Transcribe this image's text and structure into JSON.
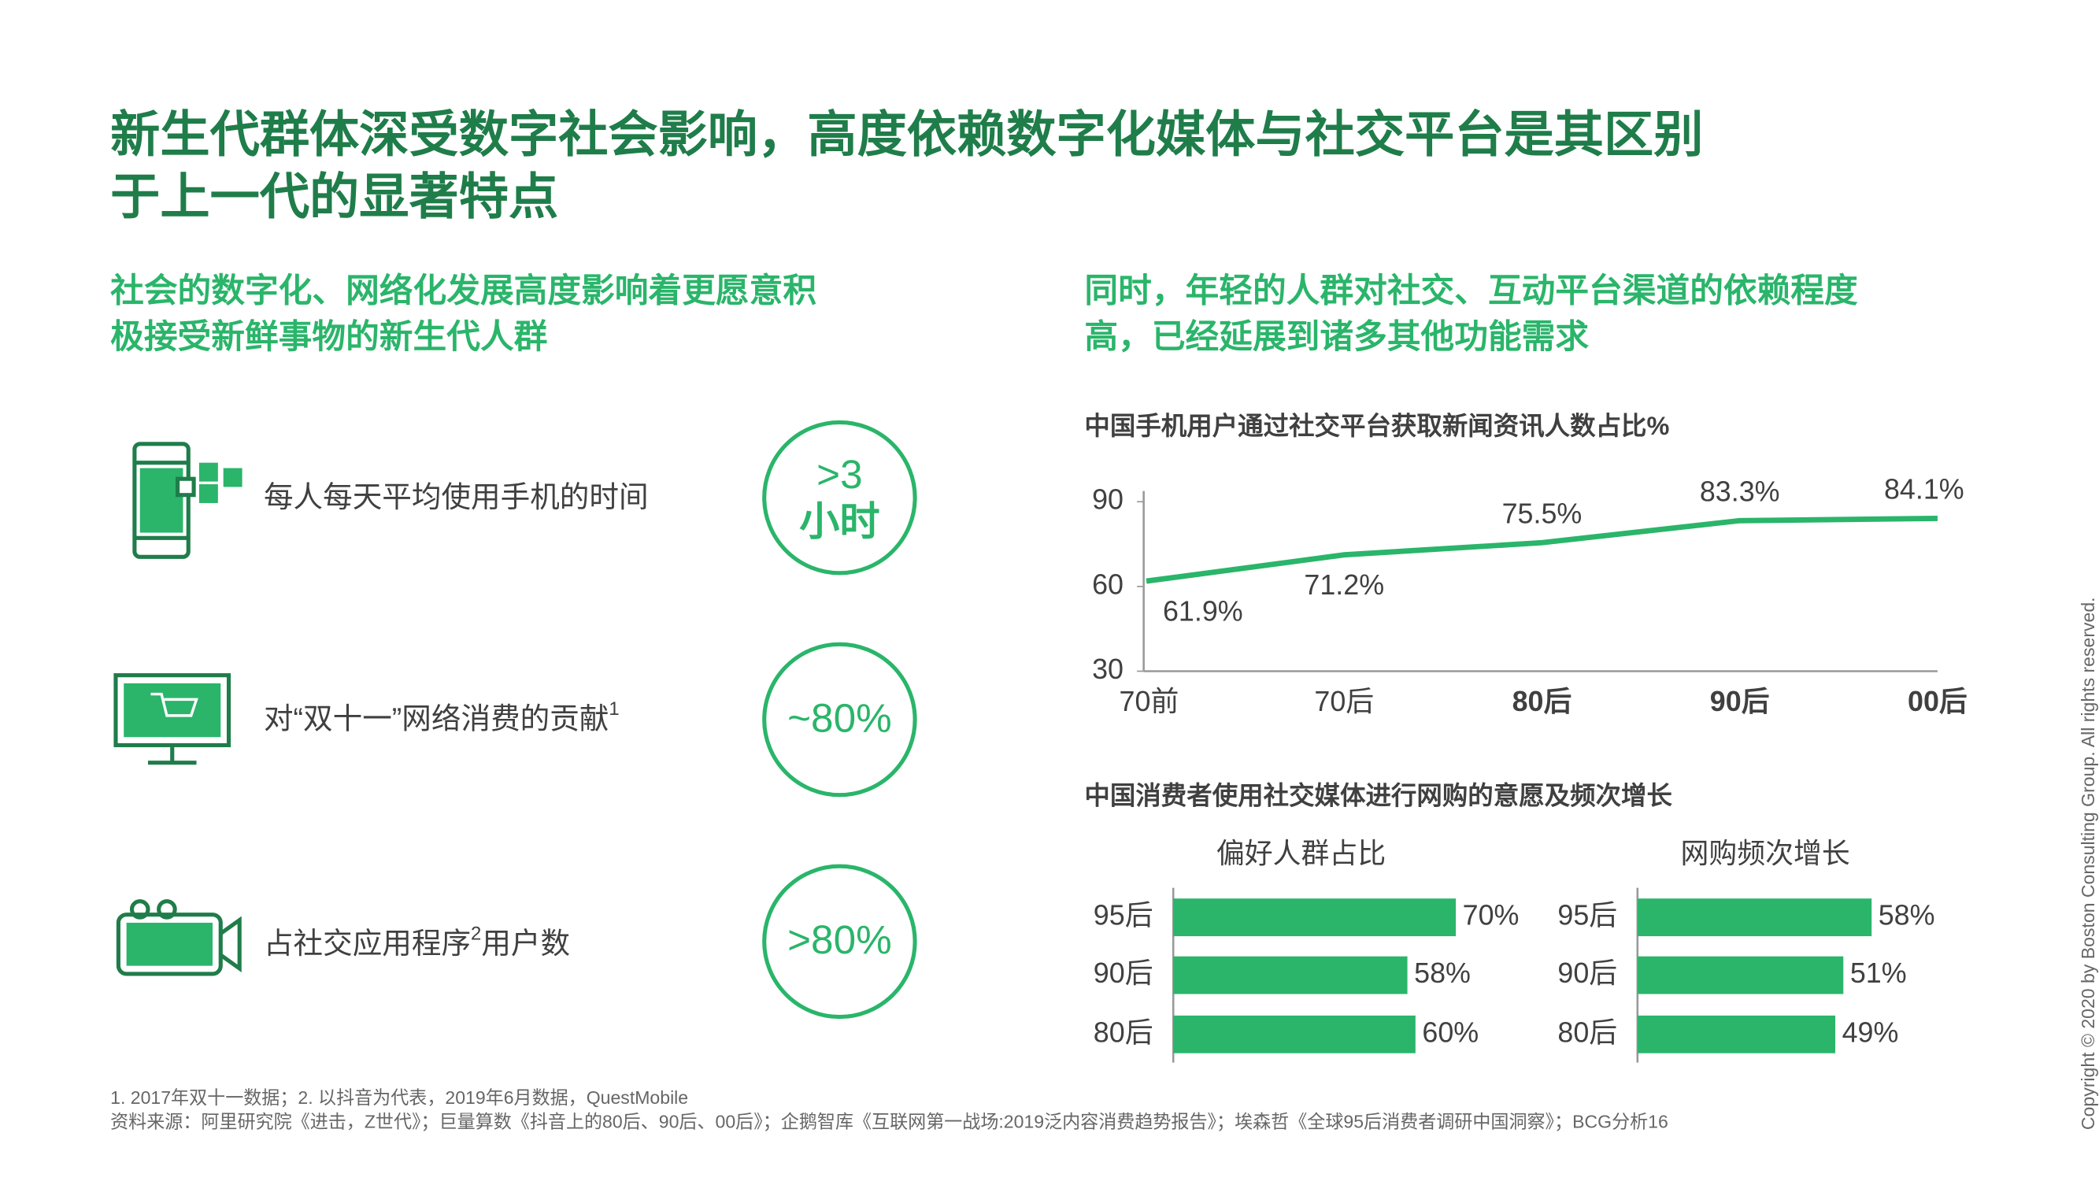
{
  "header": {
    "title_line1": "新生代群体深受数字社会影响，高度依赖数字化媒体与社交平台是其区别",
    "title_line2": "于上一代的显著特点"
  },
  "left": {
    "subtitle_line1": "社会的数字化、网络化发展高度影响着更愿意积",
    "subtitle_line2": "极接受新鲜事物的新生代人群",
    "items": [
      {
        "text": "每人每天平均使用手机的时间",
        "stat": ">3",
        "stat_unit": "小时"
      },
      {
        "text": "对“双十一”网络消费的贡献",
        "sup": "1",
        "stat": "~80%"
      },
      {
        "text": "占社交应用程序",
        "sup": "2",
        "text_after": "用户数",
        "stat": ">80%"
      }
    ]
  },
  "right": {
    "subtitle_line1": "同时，年轻的人群对社交、互动平台渠道的依赖程度",
    "subtitle_line2": "高，已经延展到诸多其他功能需求",
    "bar_section_title": "中国消费者使用社交媒体进行网购的意愿及频次增长"
  },
  "footer": {
    "notes": "1. 2017年双十一数据；2. 以抖音为代表，2019年6月数据，QuestMobile",
    "sources": "资料来源：阿里研究院《进击，Z世代》；巨量算数《抖音上的80后、90后、00后》；企鹅智库《互联网第一战场:2019泛内容消费趋势报告》；埃森哲《全球95后消费者调研中国洞察》；BCG分析",
    "page": "16",
    "copyright": "Copyright © 2020 by Boston Consulting Group. All rights reserved."
  },
  "chart_data": [
    {
      "type": "line",
      "title": "中国手机用户通过社交平台获取新闻资讯人数占比%",
      "categories": [
        "70前",
        "70后",
        "80后",
        "90后",
        "00后"
      ],
      "category_colors": [
        "#404040",
        "#404040",
        "#2ab56a",
        "#2ab56a",
        "#2ab56a"
      ],
      "values": [
        61.9,
        71.2,
        75.5,
        83.3,
        84.1
      ],
      "value_labels": [
        "61.9%",
        "71.2%",
        "75.5%",
        "83.3%",
        "84.1%"
      ],
      "color": "#2ab56a",
      "ylim": [
        30,
        90
      ],
      "yticks": [
        30,
        60,
        90
      ]
    },
    {
      "type": "hbar",
      "title": "偏好人群占比",
      "categories": [
        "95后",
        "90后",
        "80后"
      ],
      "values": [
        70,
        58,
        60
      ],
      "value_labels": [
        "70%",
        "58%",
        "60%"
      ],
      "color": "#2ab56a",
      "xlim": [
        0,
        100
      ]
    },
    {
      "type": "hbar",
      "title": "网购频次增长",
      "categories": [
        "95后",
        "90后",
        "80后"
      ],
      "values": [
        58,
        51,
        49
      ],
      "value_labels": [
        "58%",
        "51%",
        "49%"
      ],
      "color": "#2ab56a",
      "xlim": [
        0,
        100
      ]
    }
  ]
}
